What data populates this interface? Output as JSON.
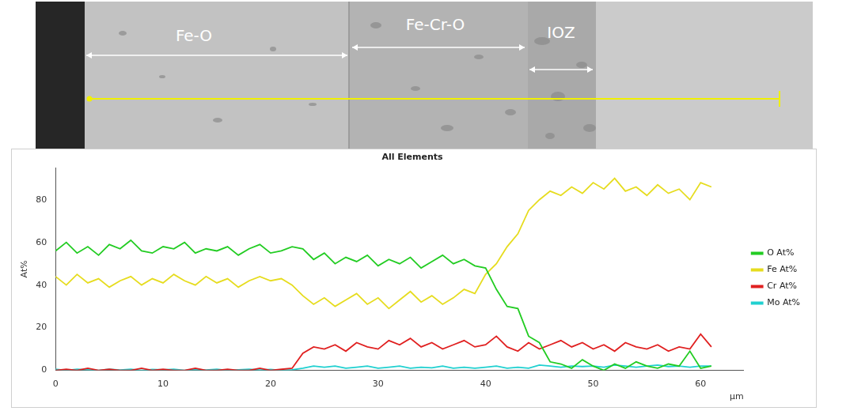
{
  "image": {
    "labels": [
      "Fe-O",
      "Fe-Cr-O",
      "IOZ"
    ]
  },
  "chart_data": {
    "type": "line",
    "title": "All Elements",
    "x_label": "µm",
    "y_label": "At%",
    "x": [
      0,
      1,
      2,
      3,
      4,
      5,
      6,
      7,
      8,
      9,
      10,
      11,
      12,
      13,
      14,
      15,
      16,
      17,
      18,
      19,
      20,
      21,
      22,
      23,
      24,
      25,
      26,
      27,
      28,
      29,
      30,
      31,
      32,
      33,
      34,
      35,
      36,
      37,
      38,
      39,
      40,
      41,
      42,
      43,
      44,
      45,
      46,
      47,
      48,
      49,
      50,
      51,
      52,
      53,
      54,
      55,
      56,
      57,
      58,
      59,
      60,
      61
    ],
    "series": [
      {
        "name": "O At%",
        "color": "#22cc22",
        "values": [
          56,
          60,
          55,
          58,
          54,
          59,
          57,
          61,
          56,
          55,
          58,
          57,
          60,
          55,
          57,
          56,
          58,
          54,
          57,
          59,
          55,
          56,
          58,
          57,
          52,
          55,
          50,
          53,
          51,
          54,
          49,
          52,
          50,
          53,
          48,
          51,
          54,
          50,
          52,
          49,
          48,
          38,
          30,
          29,
          16,
          13,
          4,
          3,
          1,
          5,
          2,
          0,
          3,
          1,
          4,
          2,
          1,
          3,
          2,
          9,
          1,
          2
        ]
      },
      {
        "name": "Fe At%",
        "color": "#e6dc1e",
        "values": [
          44,
          40,
          45,
          41,
          43,
          39,
          42,
          44,
          40,
          43,
          41,
          45,
          42,
          40,
          44,
          41,
          43,
          39,
          42,
          44,
          42,
          43,
          40,
          35,
          31,
          34,
          30,
          33,
          36,
          31,
          34,
          29,
          33,
          37,
          32,
          35,
          31,
          34,
          38,
          36,
          45,
          50,
          58,
          64,
          75,
          80,
          84,
          82,
          86,
          83,
          88,
          85,
          90,
          84,
          86,
          82,
          87,
          83,
          85,
          80,
          88,
          86
        ]
      },
      {
        "name": "Cr At%",
        "color": "#e02020",
        "values": [
          0,
          0.5,
          0,
          1,
          0,
          0.5,
          0,
          0,
          1,
          0,
          0.5,
          0,
          0,
          1,
          0,
          0,
          0.5,
          0,
          0,
          1,
          0,
          0.5,
          1,
          8,
          11,
          10,
          12,
          9,
          13,
          11,
          10,
          14,
          12,
          15,
          11,
          13,
          10,
          12,
          14,
          11,
          12,
          16,
          11,
          9,
          13,
          10,
          12,
          14,
          11,
          13,
          10,
          12,
          9,
          13,
          11,
          10,
          12,
          9,
          11,
          10,
          17,
          11
        ]
      },
      {
        "name": "Mo At%",
        "color": "#20d0d0",
        "values": [
          0.5,
          0,
          0.5,
          0.3,
          0,
          0.5,
          0.2,
          0.5,
          0,
          0.4,
          0.3,
          0.5,
          0,
          0.4,
          0.2,
          0.5,
          0,
          0.3,
          0.5,
          0.2,
          0.4,
          0,
          0.3,
          1,
          2,
          1.5,
          2,
          1,
          1.5,
          2,
          1,
          1.5,
          2,
          1,
          1.5,
          1.2,
          2,
          1,
          1.5,
          1,
          1.5,
          2,
          1,
          1.5,
          1,
          2.5,
          2,
          1.5,
          2,
          1.8,
          2,
          1.5,
          2.5,
          2,
          1.5,
          2,
          2.5,
          1.8,
          2,
          1.5,
          2,
          2
        ]
      }
    ],
    "xlim": [
      0,
      64
    ],
    "xticks": [
      0,
      10,
      20,
      30,
      40,
      50,
      60
    ],
    "ylim": [
      0,
      95
    ],
    "yticks": [
      0,
      20,
      40,
      60,
      80
    ],
    "grid": false,
    "legend": "right"
  }
}
